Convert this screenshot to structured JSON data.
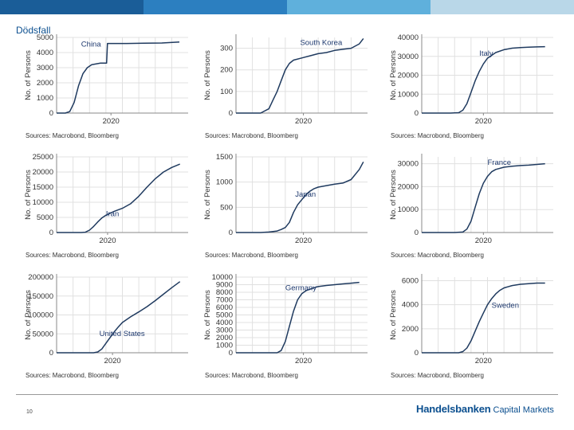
{
  "header": {
    "title": "Dödsfall",
    "bar_colors": [
      "#1a5d98",
      "#2c7fc0",
      "#5fb0dc",
      "#b9d7e8"
    ]
  },
  "footer": {
    "page_number": "10",
    "brand_bold": "Handelsbanken",
    "brand_regular": "Capital Markets"
  },
  "chart_data": [
    {
      "type": "line",
      "title": "China",
      "ylabel": "No. of Persons",
      "xlabel": "",
      "source": "Sources: Macrobond, Bloomberg",
      "ylim": [
        0,
        5000
      ],
      "yticks": [
        0,
        1000,
        2000,
        3000,
        4000,
        5000
      ],
      "ytick_labels": [
        "0",
        "1000",
        "2000",
        "3000",
        "4000",
        "5000"
      ],
      "x_range": [
        0,
        150
      ],
      "x_tick": {
        "x": 62,
        "label": "2020"
      },
      "title_at": [
        28,
        4600
      ],
      "series": [
        {
          "name": "China",
          "x": [
            0,
            10,
            15,
            20,
            25,
            30,
            35,
            40,
            45,
            50,
            55,
            57,
            58,
            62,
            80,
            100,
            120,
            140
          ],
          "y": [
            0,
            0,
            100,
            700,
            1800,
            2600,
            3000,
            3200,
            3250,
            3300,
            3300,
            3300,
            4600,
            4600,
            4600,
            4620,
            4630,
            4700
          ]
        }
      ]
    },
    {
      "type": "line",
      "title": "South Korea",
      "ylabel": "No. of Persons",
      "xlabel": "",
      "source": "Sources: Macrobond, Bloomberg",
      "ylim": [
        0,
        350
      ],
      "yticks": [
        0,
        100,
        200,
        300
      ],
      "ytick_labels": [
        "0",
        "100",
        "200",
        "300"
      ],
      "x_range": [
        0,
        160
      ],
      "x_tick": {
        "x": 82,
        "label": "2020"
      },
      "title_at": [
        78,
        330
      ],
      "series": [
        {
          "name": "South Korea",
          "x": [
            0,
            30,
            40,
            45,
            50,
            55,
            60,
            65,
            70,
            80,
            90,
            100,
            110,
            120,
            130,
            140,
            150,
            155
          ],
          "y": [
            0,
            0,
            20,
            60,
            100,
            150,
            200,
            230,
            245,
            255,
            265,
            275,
            280,
            290,
            295,
            300,
            320,
            345
          ]
        }
      ]
    },
    {
      "type": "line",
      "title": "Italy",
      "ylabel": "No. of Persons",
      "xlabel": "",
      "source": "Sources: Macrobond, Bloomberg",
      "ylim": [
        0,
        40000
      ],
      "yticks": [
        0,
        10000,
        20000,
        30000,
        40000
      ],
      "ytick_labels": [
        "0",
        "10000",
        "20000",
        "30000",
        "40000"
      ],
      "x_range": [
        0,
        160
      ],
      "x_tick": {
        "x": 75,
        "label": "2020"
      },
      "title_at": [
        70,
        32000
      ],
      "series": [
        {
          "name": "Italy",
          "x": [
            0,
            35,
            45,
            50,
            55,
            60,
            65,
            70,
            75,
            80,
            90,
            100,
            110,
            120,
            130,
            140,
            150
          ],
          "y": [
            0,
            0,
            200,
            1500,
            5000,
            11000,
            17000,
            22000,
            26000,
            29000,
            32000,
            33500,
            34300,
            34600,
            34800,
            35000,
            35100
          ]
        }
      ]
    },
    {
      "type": "line",
      "title": "Iran",
      "ylabel": "No. of Persons",
      "xlabel": "",
      "source": "Sources: Macrobond, Bloomberg",
      "ylim": [
        0,
        25000
      ],
      "yticks": [
        0,
        5000,
        10000,
        15000,
        20000,
        25000
      ],
      "ytick_labels": [
        "0",
        "5000",
        "10000",
        "15000",
        "20000",
        "25000"
      ],
      "x_range": [
        0,
        160
      ],
      "x_tick": {
        "x": 62,
        "label": "2020"
      },
      "title_at": [
        60,
        6500
      ],
      "series": [
        {
          "name": "Iran",
          "x": [
            0,
            30,
            35,
            40,
            45,
            50,
            55,
            60,
            70,
            80,
            90,
            100,
            110,
            120,
            130,
            140,
            150
          ],
          "y": [
            0,
            0,
            100,
            800,
            2000,
            3500,
            4800,
            5700,
            7000,
            8000,
            9500,
            12000,
            15000,
            17800,
            20000,
            21500,
            22600
          ]
        }
      ]
    },
    {
      "type": "line",
      "title": "Japan",
      "ylabel": "No. of Persons",
      "xlabel": "",
      "source": "Sources: Macrobond, Bloomberg",
      "ylim": [
        0,
        1500
      ],
      "yticks": [
        0,
        500,
        1000,
        1500
      ],
      "ytick_labels": [
        "0",
        "500",
        "1000",
        "1500"
      ],
      "x_range": [
        0,
        160
      ],
      "x_tick": {
        "x": 82,
        "label": "2020"
      },
      "title_at": [
        72,
        770
      ],
      "series": [
        {
          "name": "Japan",
          "x": [
            0,
            30,
            40,
            50,
            55,
            60,
            65,
            70,
            75,
            80,
            85,
            90,
            95,
            100,
            110,
            120,
            130,
            140,
            150,
            155
          ],
          "y": [
            0,
            0,
            10,
            30,
            60,
            100,
            200,
            400,
            550,
            650,
            750,
            820,
            870,
            900,
            930,
            960,
            980,
            1050,
            1250,
            1400
          ]
        }
      ]
    },
    {
      "type": "line",
      "title": "France",
      "ylabel": "No. of Persons",
      "xlabel": "",
      "source": "Sources: Macrobond, Bloomberg",
      "ylim": [
        0,
        33000
      ],
      "yticks": [
        0,
        10000,
        20000,
        30000
      ],
      "ytick_labels": [
        "0",
        "10000",
        "20000",
        "30000"
      ],
      "x_range": [
        0,
        160
      ],
      "x_tick": {
        "x": 75,
        "label": "2020"
      },
      "title_at": [
        80,
        31000
      ],
      "series": [
        {
          "name": "France",
          "x": [
            0,
            40,
            50,
            55,
            60,
            65,
            70,
            75,
            80,
            85,
            90,
            100,
            110,
            120,
            130,
            140,
            150
          ],
          "y": [
            0,
            0,
            200,
            1500,
            5000,
            11000,
            17000,
            21500,
            24500,
            26500,
            27500,
            28500,
            28900,
            29200,
            29400,
            29700,
            30000
          ]
        }
      ]
    },
    {
      "type": "line",
      "title": "United States",
      "ylabel": "No. of Persons",
      "xlabel": "",
      "source": "Sources: Macrobond, Bloomberg",
      "ylim": [
        0,
        200000
      ],
      "yticks": [
        0,
        50000,
        100000,
        150000,
        200000
      ],
      "ytick_labels": [
        "0",
        "50000",
        "100000",
        "150000",
        "200000"
      ],
      "x_range": [
        0,
        160
      ],
      "x_tick": {
        "x": 68,
        "label": "2020"
      },
      "title_at": [
        52,
        53000
      ],
      "series": [
        {
          "name": "United States",
          "x": [
            0,
            45,
            50,
            55,
            60,
            65,
            70,
            75,
            80,
            90,
            100,
            110,
            120,
            130,
            140,
            150
          ],
          "y": [
            0,
            0,
            2000,
            10000,
            25000,
            40000,
            55000,
            68000,
            80000,
            95000,
            108000,
            122000,
            138000,
            155000,
            172000,
            188000
          ]
        }
      ]
    },
    {
      "type": "line",
      "title": "Germany",
      "ylabel": "No. of Persons",
      "xlabel": "",
      "source": "Sources: Macrobond, Bloomberg",
      "ylim": [
        0,
        10000
      ],
      "yticks": [
        0,
        1000,
        2000,
        3000,
        4000,
        5000,
        6000,
        7000,
        8000,
        9000,
        10000
      ],
      "ytick_labels": [
        "0",
        "1000",
        "2000",
        "3000",
        "4000",
        "5000",
        "6000",
        "7000",
        "8000",
        "9000",
        "10000"
      ],
      "x_range": [
        0,
        160
      ],
      "x_tick": {
        "x": 82,
        "label": "2020"
      },
      "title_at": [
        60,
        8700
      ],
      "series": [
        {
          "name": "Germany",
          "x": [
            0,
            50,
            55,
            60,
            65,
            70,
            75,
            80,
            85,
            90,
            95,
            100,
            110,
            120,
            130,
            140,
            150
          ],
          "y": [
            0,
            0,
            300,
            1500,
            3500,
            5500,
            7000,
            7800,
            8200,
            8400,
            8600,
            8750,
            8900,
            9000,
            9100,
            9200,
            9300
          ]
        }
      ]
    },
    {
      "type": "line",
      "title": "Sweden",
      "ylabel": "No. of Persons",
      "xlabel": "",
      "source": "Sources: Macrobond, Bloomberg",
      "ylim": [
        0,
        6300
      ],
      "yticks": [
        0,
        2000,
        4000,
        6000
      ],
      "ytick_labels": [
        "0",
        "2000",
        "4000",
        "6000"
      ],
      "x_range": [
        0,
        160
      ],
      "x_tick": {
        "x": 75,
        "label": "2020"
      },
      "title_at": [
        85,
        4000
      ],
      "series": [
        {
          "name": "Sweden",
          "x": [
            0,
            45,
            50,
            55,
            60,
            65,
            70,
            75,
            80,
            85,
            90,
            95,
            100,
            110,
            120,
            130,
            140,
            150
          ],
          "y": [
            0,
            0,
            100,
            400,
            1000,
            1800,
            2600,
            3300,
            4000,
            4500,
            4900,
            5200,
            5400,
            5600,
            5700,
            5750,
            5800,
            5800
          ]
        }
      ]
    }
  ]
}
